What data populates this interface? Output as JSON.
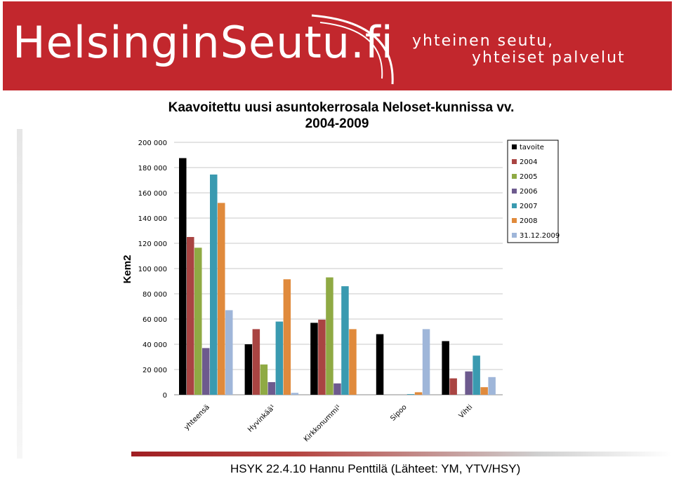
{
  "header": {
    "logo_text": "HelsinginSeutu.fi",
    "slogan_line1": "yhteinen seutu,",
    "slogan_line2": "yhteiset palvelut",
    "banner_color": "#c2272d"
  },
  "footer": {
    "text": "HSYK 22.4.10 Hannu Penttilä  (Lähteet: YM, YTV/HSY)"
  },
  "chart_data": {
    "type": "bar",
    "title": "Kaavoitettu uusi asuntokerrosala Neloset-kunnissa vv.",
    "subtitle": "2004-2009",
    "xlabel": "",
    "ylabel": "Kem2",
    "ylim": [
      0,
      200000
    ],
    "yticks": [
      0,
      20000,
      40000,
      60000,
      80000,
      100000,
      120000,
      140000,
      160000,
      180000,
      200000
    ],
    "ytick_labels": [
      "0",
      "20 000",
      "40 000",
      "60 000",
      "80 000",
      "100 000",
      "120 000",
      "140 000",
      "160 000",
      "180 000",
      "200 000"
    ],
    "grid": true,
    "legend_position": "top-right",
    "categories": [
      "yhteensä",
      "Hyvinkää¹",
      "Kirkkonummi¹",
      "Sipoo",
      "Vihti"
    ],
    "series": [
      {
        "name": "tavoite",
        "color": "#000000",
        "values": [
          187500,
          40000,
          57000,
          48000,
          42500
        ]
      },
      {
        "name": "2004",
        "color": "#a94442",
        "values": [
          125000,
          52000,
          59500,
          0,
          13000
        ]
      },
      {
        "name": "2005",
        "color": "#8faa44",
        "values": [
          116500,
          24000,
          93000,
          0,
          0
        ]
      },
      {
        "name": "2006",
        "color": "#6d5a8e",
        "values": [
          37000,
          10000,
          9000,
          0,
          18500
        ]
      },
      {
        "name": "2007",
        "color": "#3a9ab0",
        "values": [
          174500,
          58000,
          86000,
          500,
          31000
        ]
      },
      {
        "name": "2008",
        "color": "#e08a3c",
        "values": [
          152000,
          91500,
          52000,
          2000,
          6000
        ]
      },
      {
        "name": "31.12.2009",
        "color": "#9fb6d9",
        "values": [
          67000,
          1500,
          0,
          52000,
          14000
        ]
      }
    ]
  }
}
